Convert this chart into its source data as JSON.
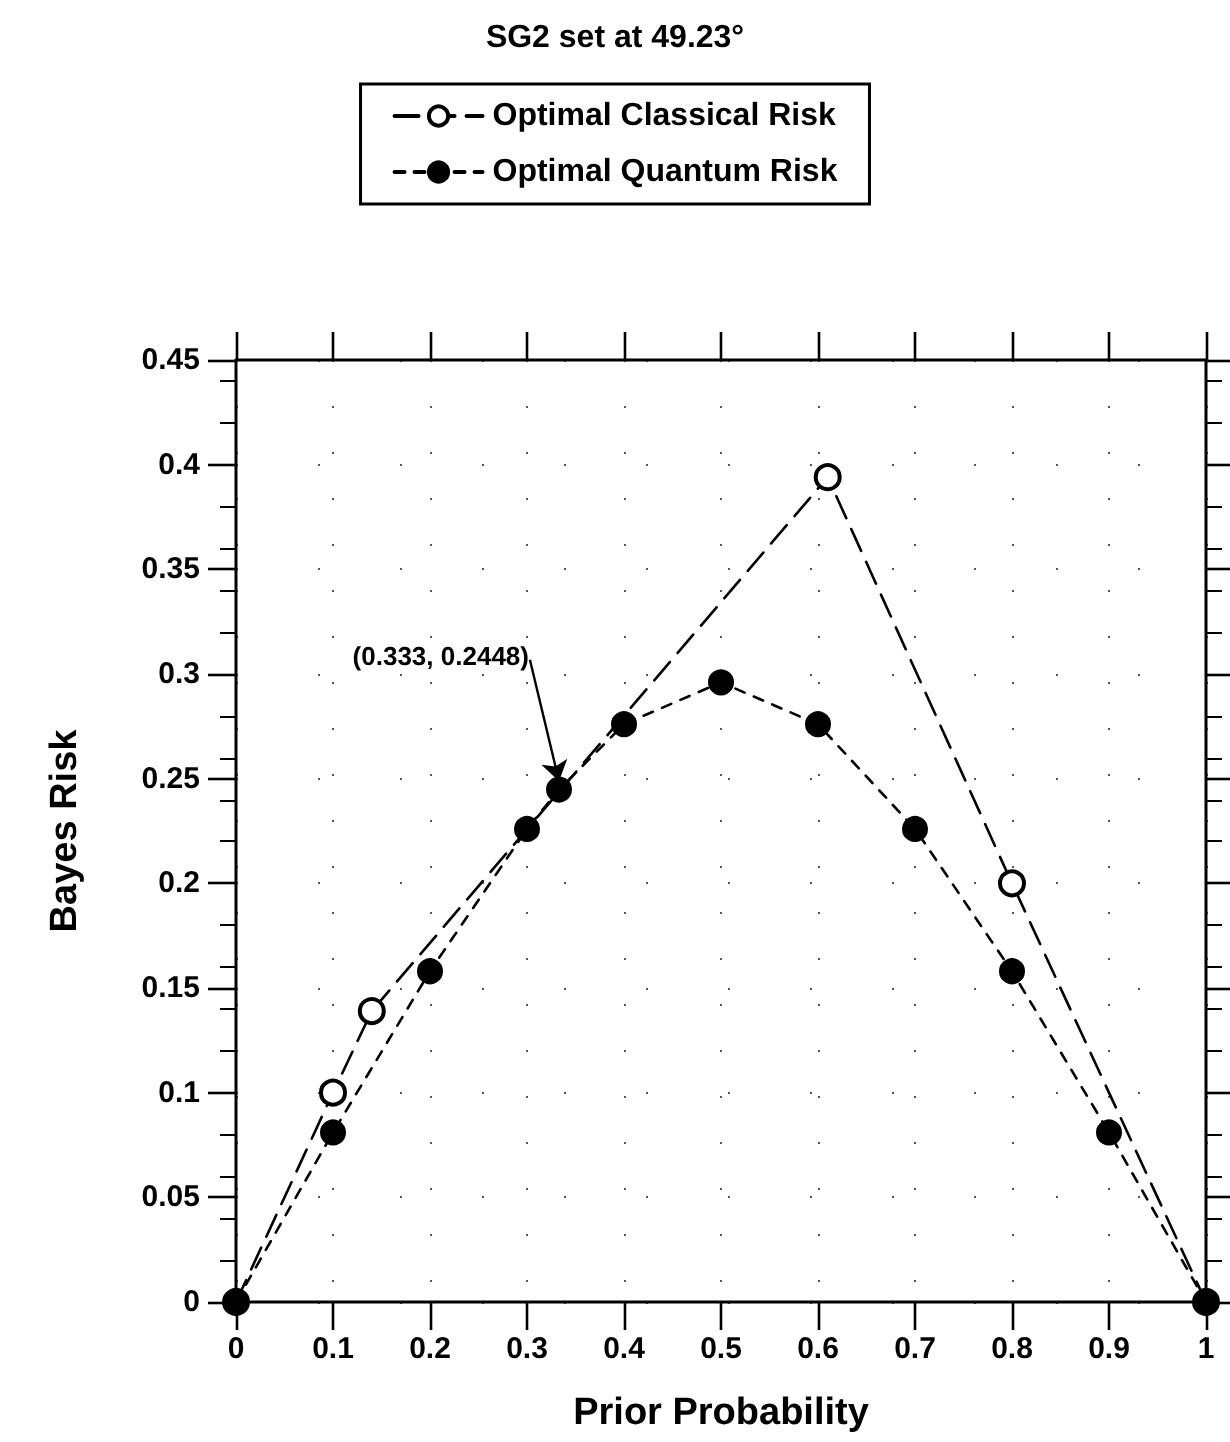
{
  "chart_data": {
    "type": "line",
    "title": "SG2 set at 49.23°",
    "xlabel": "Prior Probability",
    "ylabel": "Bayes Risk",
    "series": [
      {
        "name": "Optimal Classical Risk",
        "color": "#000000",
        "line_style": "dashed",
        "x": [
          0,
          0.1,
          0.14,
          0.61,
          0.8,
          1
        ],
        "values": [
          0,
          0.1,
          0.139,
          0.394,
          0.2,
          0
        ]
      },
      {
        "name": "Optimal Quantum Risk",
        "color": "#000000",
        "line_style": "dotted",
        "x": [
          0,
          0.1,
          0.2,
          0.3,
          0.333,
          0.4,
          0.5,
          0.6,
          0.7,
          0.8,
          0.9,
          1
        ],
        "values": [
          0,
          0.081,
          0.158,
          0.226,
          0.2448,
          0.276,
          0.296,
          0.276,
          0.226,
          0.158,
          0.081,
          0
        ]
      }
    ],
    "annotations": [
      {
        "text": "(0.333, 0.2448)",
        "x": 0.333,
        "y": 0.2448
      }
    ],
    "xlim": [
      0,
      1
    ],
    "xticks": [
      0,
      0.1,
      0.2,
      0.3,
      0.4,
      0.5,
      0.6,
      0.7,
      0.8,
      0.9,
      1
    ],
    "ylim": [
      0,
      0.45
    ],
    "yticks": [
      0,
      0.05,
      0.1,
      0.15,
      0.2,
      0.25,
      0.3,
      0.35,
      0.4,
      0.45
    ],
    "grid": true,
    "legend": "top",
    "marker": "circle"
  }
}
